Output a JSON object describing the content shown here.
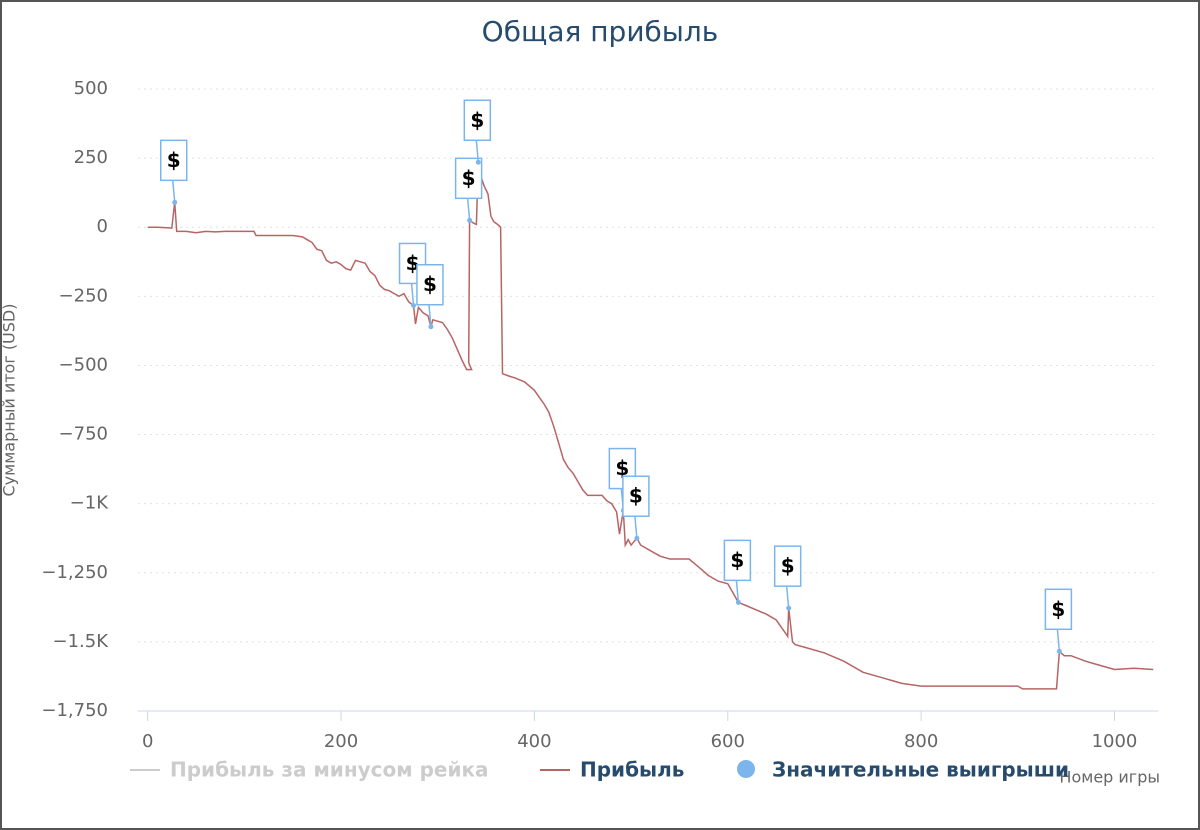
{
  "chart_data": {
    "type": "line",
    "title": "Общая прибыль",
    "x_label": "Номер игры",
    "y_label": "Суммарный итог (USD)",
    "x": [
      0,
      10,
      20,
      25,
      28,
      30,
      40,
      50,
      60,
      70,
      80,
      100,
      110,
      112,
      150,
      160,
      165,
      170,
      175,
      180,
      185,
      190,
      195,
      200,
      205,
      210,
      215,
      220,
      225,
      230,
      235,
      240,
      245,
      250,
      255,
      260,
      265,
      270,
      275,
      277,
      280,
      285,
      290,
      293,
      295,
      305,
      310,
      315,
      320,
      325,
      330,
      335,
      332,
      333,
      337,
      340,
      342,
      345,
      348,
      352,
      355,
      358,
      362,
      365,
      367,
      375,
      380,
      390,
      400,
      405,
      410,
      415,
      420,
      425,
      430,
      435,
      440,
      445,
      450,
      455,
      460,
      470,
      475,
      480,
      485,
      488,
      492,
      494,
      497,
      500,
      506,
      510,
      520,
      530,
      540,
      560,
      570,
      580,
      590,
      600,
      611,
      620,
      640,
      650,
      660,
      662,
      663,
      667,
      670,
      680,
      700,
      720,
      740,
      760,
      780,
      800,
      900,
      905,
      940,
      943,
      948,
      955,
      970,
      980,
      1000,
      1020,
      1040
    ],
    "series": [
      {
        "name": "Прибыль за минусом рейка",
        "color": "#cccccc",
        "visible": false
      },
      {
        "name": "Прибыль",
        "color": "#b86464",
        "values": [
          0,
          0,
          -2,
          -3,
          90,
          -15,
          -15,
          -20,
          -15,
          -17,
          -15,
          -15,
          -15,
          -30,
          -30,
          -35,
          -45,
          -55,
          -80,
          -85,
          -120,
          -130,
          -125,
          -135,
          -150,
          -155,
          -120,
          -125,
          -130,
          -160,
          -175,
          -210,
          -225,
          -230,
          -240,
          -250,
          -240,
          -270,
          -283,
          -350,
          -290,
          -310,
          -320,
          -360,
          -335,
          -345,
          -370,
          -400,
          -440,
          -480,
          -515,
          -515,
          -490,
          25,
          15,
          10,
          235,
          180,
          150,
          120,
          40,
          20,
          10,
          0,
          -530,
          -540,
          -545,
          -560,
          -590,
          -615,
          -640,
          -670,
          -720,
          -780,
          -840,
          -870,
          -890,
          -920,
          -950,
          -970,
          -970,
          -970,
          -990,
          -1000,
          -1030,
          -1110,
          -1025,
          -1150,
          -1130,
          -1150,
          -1125,
          -1150,
          -1170,
          -1190,
          -1200,
          -1200,
          -1230,
          -1260,
          -1280,
          -1290,
          -1357,
          -1370,
          -1400,
          -1420,
          -1470,
          -1480,
          -1378,
          -1500,
          -1510,
          -1520,
          -1540,
          -1570,
          -1610,
          -1630,
          -1650,
          -1660,
          -1660,
          -1670,
          -1670,
          -1534,
          -1550,
          -1550,
          -1570,
          -1580,
          -1600,
          -1595,
          -1600
        ]
      },
      {
        "name": "Значительные выигрыши",
        "color": "#7cb5ec",
        "type": "scatter",
        "flag_text": "$",
        "x": [
          28,
          275,
          293,
          333,
          342,
          492,
          506,
          611,
          663,
          943
        ],
        "values": [
          90,
          -283,
          -360,
          25,
          235,
          -1025,
          -1125,
          -1357,
          -1378,
          -1534
        ]
      }
    ],
    "xlim": [
      -10,
      1045
    ],
    "ylim": [
      -1750,
      500
    ],
    "xticks": [
      0,
      200,
      400,
      600,
      800,
      1000
    ],
    "yticks": [
      500,
      250,
      0,
      {
        "value": -250,
        "label": "−250"
      },
      {
        "value": -500,
        "label": "−500"
      },
      {
        "value": -750,
        "label": "−750"
      },
      {
        "value": -1000,
        "label": "−1K"
      },
      {
        "value": -1250,
        "label": "−1,250"
      },
      {
        "value": -1500,
        "label": "−1.5K"
      },
      {
        "value": -1750,
        "label": "−1,750"
      }
    ],
    "grid": true
  }
}
